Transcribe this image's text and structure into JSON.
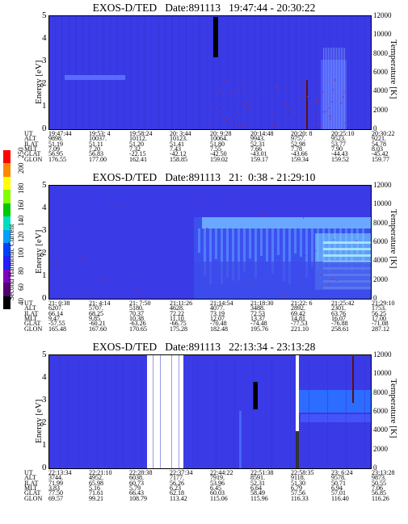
{
  "panels": [
    {
      "title": "EXOS-D/TED   Date:891113   19:47:44 - 20:30:22",
      "ylabel": "Energy [eV]",
      "rlabel": "Temperature [K]",
      "yticks": [
        "5",
        "4",
        "3",
        "2",
        "1",
        "0"
      ],
      "rticks": [
        "12000",
        "10000",
        "8000",
        "6000",
        "4000",
        "2000",
        "0"
      ],
      "ephem": {
        "UT": [
          "19:47:44",
          "19:53:  4",
          "19:58:24",
          "20:  3:44",
          "20:  9:28",
          "20:14:48",
          "20:20:  8",
          "20:25:10",
          "20:30:22"
        ],
        "ALT": [
          "9898.",
          "10037.",
          "10112.",
          "10123.",
          "10064.",
          "9943.",
          "9757.",
          "9523.",
          "9221."
        ],
        "ILAT": [
          "51.19",
          "51.11",
          "51.20",
          "51.41",
          "51.80",
          "52.31",
          "52.98",
          "53.77",
          "54.78"
        ],
        "MLT": [
          "7.09",
          "7.20",
          "7.32",
          "7.43",
          "7.55",
          "7.66",
          "7.78",
          "7.90",
          "8.03"
        ],
        "GLAT": [
          "56.95",
          "56.83",
          "-22.15",
          "-42.12",
          "-42.50",
          "-43.01",
          "-43.66",
          "-44.43",
          "-45.42"
        ],
        "GLON": [
          "176.55",
          "177.00",
          "162.41",
          "158.85",
          "159.02",
          "159.17",
          "159.34",
          "159.52",
          "159.77"
        ]
      }
    },
    {
      "title": "EXOS-D/TED   Date:891113   21:  0:38 - 21:29:10",
      "ylabel": "Energy [eV]",
      "rlabel": "Temperature [K]",
      "yticks": [
        "5",
        "4",
        "3",
        "2",
        "1",
        "0"
      ],
      "rticks": [
        "12000",
        "10000",
        "8000",
        "6000",
        "4000",
        "2000",
        "0"
      ],
      "ephem": {
        "UT": [
          "21:  0:38",
          "21:  4:14",
          "21:  7:50",
          "21:11:26",
          "21:14:54",
          "21:18:30",
          "21:22:  6",
          "21:25:42",
          "21:29:10"
        ],
        "ALT": [
          "6207.",
          "5707.",
          "5180.",
          "4628.",
          "4077.",
          "3488.",
          "2892.",
          "2301.",
          "1753."
        ],
        "ILAT": [
          "66.14",
          "68.25",
          "70.37",
          "72.22",
          "73.19",
          "72.53",
          "69.42",
          "63.76",
          "56.25"
        ],
        "MLT": [
          "9.47",
          "9.85",
          "10.38",
          "11.10",
          "12.07",
          "13.37",
          "14.81",
          "16.07",
          "17.00"
        ],
        "GLAT": [
          "-57.55",
          "-60.21",
          "-63.26",
          "-66.75",
          "-70.48",
          "-74.48",
          "-77.53",
          "-76.88",
          "-71.08"
        ],
        "GLON": [
          "165.48",
          "167.60",
          "170.65",
          "175.28",
          "182.48",
          "195.76",
          "221.10",
          "258.61",
          "287.12"
        ]
      }
    },
    {
      "title": "EXOS-D/TED   Date:891113   22:13:34 - 23:13:28",
      "ylabel": "Energy [eV]",
      "rlabel": "Temperature [K]",
      "yticks": [
        "5",
        "4",
        "3",
        "2",
        "1",
        "0"
      ],
      "rticks": [
        "12000",
        "10000",
        "8000",
        "6000",
        "4000",
        "2000",
        "0"
      ],
      "ephem": {
        "UT": [
          "22:13:34",
          "22:21:10",
          "22:28:38",
          "22:37:34",
          "22:44:22",
          "22:51:38",
          "22:58:35",
          "23:  6:24",
          "23:13:28"
        ],
        "ALT": [
          "3744.",
          "4952.",
          "6038.",
          "7177.",
          "7919.",
          "8591.",
          "9118.",
          "9578.",
          "9873."
        ],
        "ILAT": [
          "71.99",
          "65.98",
          "60.73",
          "56.26",
          "53.96",
          "52.31",
          "51.30",
          "50.71",
          "50.55"
        ],
        "MLT": [
          "3.83",
          "5.16",
          "5.79",
          "6.23",
          "6.45",
          "6.64",
          "6.79",
          "6.94",
          "7.06"
        ],
        "GLAT": [
          "77.50",
          "71.61",
          "66.43",
          "62.18",
          "60.03",
          "58.49",
          "57.56",
          "57.01",
          "56.85"
        ],
        "GLON": [
          "69.57",
          "99.21",
          "108.79",
          "113.42",
          "115.06",
          "115.96",
          "116.33",
          "116.40",
          "116.26"
        ]
      }
    }
  ],
  "colorbar": {
    "label": "Second Harmonic Current",
    "ticks": [
      "250",
      "200",
      "180",
      "160",
      "140",
      "120",
      "100",
      "80",
      "60",
      "40"
    ],
    "colors": [
      "#ff0000",
      "#ff8800",
      "#ffff00",
      "#7fff00",
      "#00c800",
      "#00e0c0",
      "#00a0ff",
      "#0040ff",
      "#2020ff",
      "#8000c0",
      "#500070",
      "#000000"
    ]
  },
  "eph_labels": [
    "UT",
    "ALT",
    "ILAT",
    "MLT",
    "GLAT",
    "GLON"
  ],
  "chart_data": [
    {
      "type": "heatmap",
      "title": "EXOS-D/TED   Date:891113   19:47:44 - 20:30:22",
      "xlabel": "UT",
      "ylabel": "Energy [eV]",
      "y2label": "Temperature [K]",
      "ylim": [
        0,
        5
      ],
      "y2lim": [
        0,
        12000
      ],
      "x": [
        "19:47:44",
        "19:53:  4",
        "19:58:24",
        "20:  3:44",
        "20:  9:28",
        "20:14:48",
        "20:20:  8",
        "20:25:10",
        "20:30:22"
      ]
    },
    {
      "type": "heatmap",
      "title": "EXOS-D/TED   Date:891113   21:  0:38 - 21:29:10",
      "xlabel": "UT",
      "ylabel": "Energy [eV]",
      "y2label": "Temperature [K]",
      "ylim": [
        0,
        5
      ],
      "y2lim": [
        0,
        12000
      ],
      "x": [
        "21:  0:38",
        "21:  4:14",
        "21:  7:50",
        "21:11:26",
        "21:14:54",
        "21:18:30",
        "21:22:  6",
        "21:25:42",
        "21:29:10"
      ]
    },
    {
      "type": "heatmap",
      "title": "EXOS-D/TED   Date:891113   22:13:34 - 23:13:28",
      "xlabel": "UT",
      "ylabel": "Energy [eV]",
      "y2label": "Temperature [K]",
      "ylim": [
        0,
        5
      ],
      "y2lim": [
        0,
        12000
      ],
      "x": [
        "22:13:34",
        "22:21:10",
        "22:28:38",
        "22:37:34",
        "22:44:22",
        "22:51:38",
        "22:58:35",
        "23:  6:24",
        "23:13:28"
      ]
    }
  ]
}
